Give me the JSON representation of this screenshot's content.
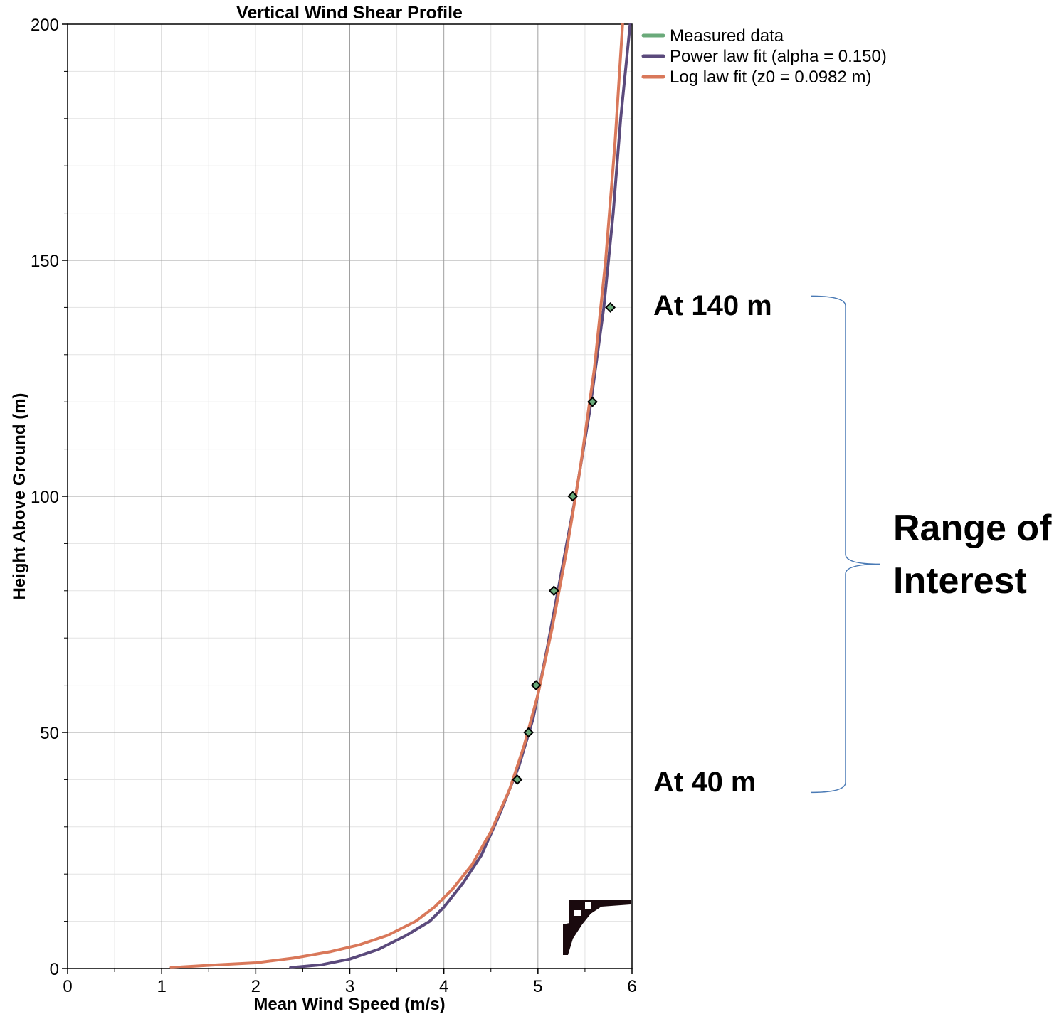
{
  "chart_data": {
    "type": "line",
    "title": "Vertical Wind Shear Profile",
    "xlabel": "Mean Wind Speed (m/s)",
    "ylabel": "Height Above Ground (m)",
    "xlim": [
      0,
      6
    ],
    "ylim": [
      0,
      200
    ],
    "x_ticks": [
      "0",
      "1",
      "2",
      "3",
      "4",
      "5",
      "6"
    ],
    "y_ticks": [
      "0",
      "50",
      "100",
      "150",
      "200"
    ],
    "grid": true,
    "legend_position": "top-right-outside",
    "series": [
      {
        "name": "Measured data",
        "kind": "scatter",
        "color": "#6aaa7a",
        "points": [
          {
            "x": 4.78,
            "y": 40
          },
          {
            "x": 4.9,
            "y": 50
          },
          {
            "x": 4.98,
            "y": 60
          },
          {
            "x": 5.17,
            "y": 80
          },
          {
            "x": 5.37,
            "y": 100
          },
          {
            "x": 5.58,
            "y": 120
          },
          {
            "x": 5.77,
            "y": 140
          }
        ]
      },
      {
        "name": "Power law fit (alpha = 0.150)",
        "kind": "line",
        "color": "#5b4a7c",
        "points": [
          {
            "x": 2.37,
            "y": 0.2
          },
          {
            "x": 2.7,
            "y": 0.8
          },
          {
            "x": 3.0,
            "y": 2
          },
          {
            "x": 3.3,
            "y": 4
          },
          {
            "x": 3.6,
            "y": 7
          },
          {
            "x": 3.85,
            "y": 10
          },
          {
            "x": 4.0,
            "y": 13
          },
          {
            "x": 4.2,
            "y": 18
          },
          {
            "x": 4.4,
            "y": 24
          },
          {
            "x": 4.6,
            "y": 33
          },
          {
            "x": 4.8,
            "y": 43
          },
          {
            "x": 4.95,
            "y": 53
          },
          {
            "x": 5.1,
            "y": 68
          },
          {
            "x": 5.25,
            "y": 84
          },
          {
            "x": 5.4,
            "y": 100
          },
          {
            "x": 5.55,
            "y": 118
          },
          {
            "x": 5.7,
            "y": 140
          },
          {
            "x": 5.8,
            "y": 160
          },
          {
            "x": 5.88,
            "y": 180
          },
          {
            "x": 5.98,
            "y": 200
          }
        ]
      },
      {
        "name": "Log law fit (z0 = 0.0982 m)",
        "kind": "line",
        "color": "#d9785a",
        "points": [
          {
            "x": 1.1,
            "y": 0.2
          },
          {
            "x": 1.6,
            "y": 0.8
          },
          {
            "x": 2.0,
            "y": 1.2
          },
          {
            "x": 2.4,
            "y": 2.2
          },
          {
            "x": 2.8,
            "y": 3.6
          },
          {
            "x": 3.1,
            "y": 5
          },
          {
            "x": 3.4,
            "y": 7
          },
          {
            "x": 3.7,
            "y": 10
          },
          {
            "x": 3.9,
            "y": 13
          },
          {
            "x": 4.1,
            "y": 17
          },
          {
            "x": 4.3,
            "y": 22
          },
          {
            "x": 4.5,
            "y": 29
          },
          {
            "x": 4.7,
            "y": 38
          },
          {
            "x": 4.85,
            "y": 47
          },
          {
            "x": 5.0,
            "y": 58
          },
          {
            "x": 5.15,
            "y": 72
          },
          {
            "x": 5.3,
            "y": 88
          },
          {
            "x": 5.45,
            "y": 106
          },
          {
            "x": 5.6,
            "y": 127
          },
          {
            "x": 5.72,
            "y": 150
          },
          {
            "x": 5.82,
            "y": 175
          },
          {
            "x": 5.9,
            "y": 200
          }
        ]
      }
    ],
    "annotations": {
      "top_label": "At 140 m",
      "bottom_label": "At 40 m",
      "range_label_line1": "Range of",
      "range_label_line2": "Interest",
      "bracket_from_y": 140,
      "bracket_to_y": 40,
      "bracket_color": "#4a7ab5"
    }
  }
}
